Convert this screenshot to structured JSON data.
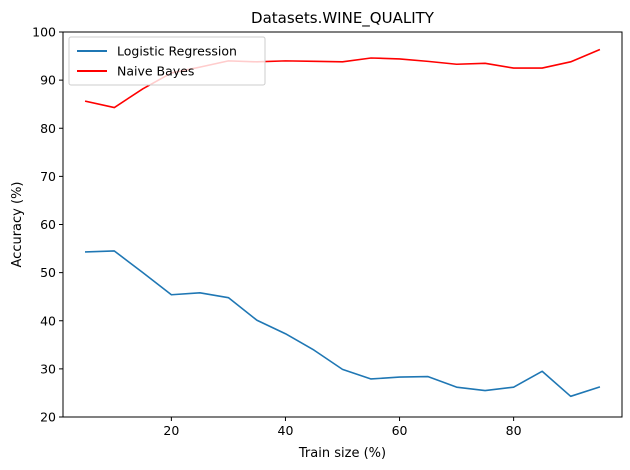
{
  "chart_data": {
    "type": "line",
    "title": "Datasets.WINE_QUALITY",
    "xlabel": "Train size (%)",
    "ylabel": "Accuracy (%)",
    "xlim": [
      1,
      99
    ],
    "ylim": [
      20,
      100
    ],
    "xticks": [
      20,
      40,
      60,
      80
    ],
    "yticks": [
      20,
      30,
      40,
      50,
      60,
      70,
      80,
      90,
      100
    ],
    "grid": false,
    "legend_position": "top-left",
    "x": [
      5,
      10,
      15,
      20,
      25,
      30,
      35,
      40,
      45,
      50,
      55,
      60,
      65,
      70,
      75,
      80,
      85,
      90,
      95
    ],
    "series": [
      {
        "name": "Logistic Regression",
        "color": "#1f77b4",
        "values": [
          54.3,
          54.5,
          50.0,
          45.4,
          45.8,
          44.8,
          40.1,
          37.3,
          33.9,
          29.9,
          27.9,
          28.3,
          28.4,
          26.2,
          25.5,
          26.2,
          29.5,
          24.3,
          26.2
        ]
      },
      {
        "name": "Naive Bayes",
        "color": "#ff0000",
        "values": [
          85.6,
          84.3,
          88.2,
          91.5,
          92.7,
          94.0,
          93.8,
          94.0,
          93.9,
          93.8,
          94.6,
          94.4,
          93.9,
          93.3,
          93.5,
          92.5,
          92.5,
          93.8,
          96.3
        ]
      }
    ]
  }
}
